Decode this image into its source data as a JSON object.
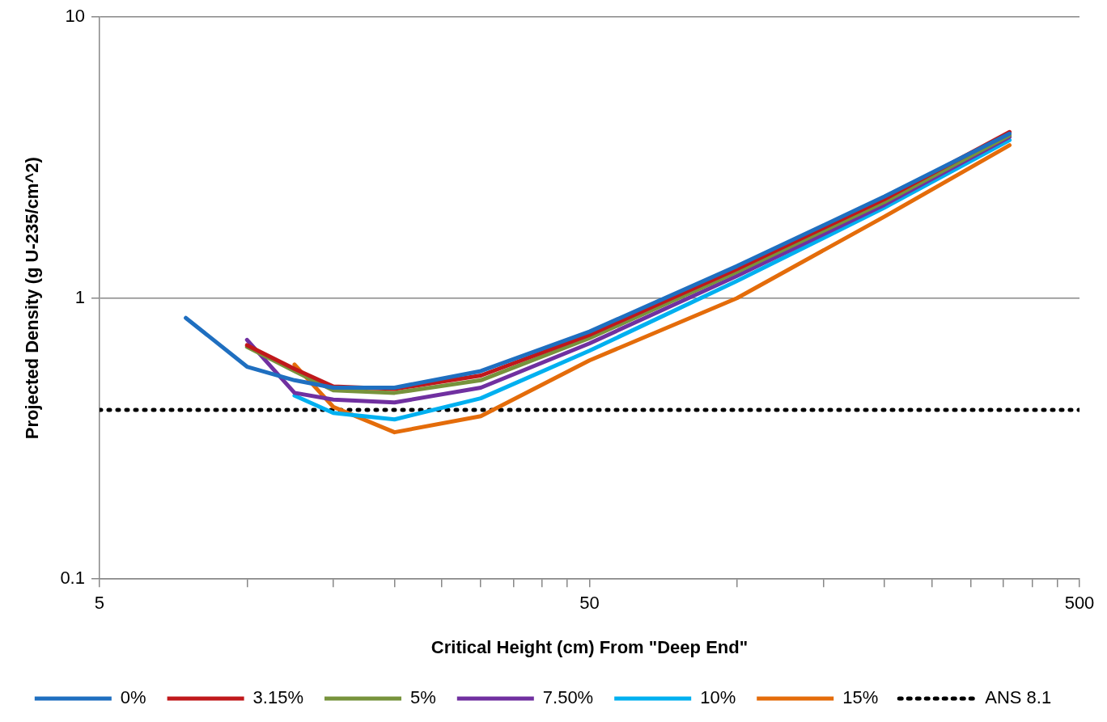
{
  "chart_data": {
    "type": "line",
    "xlabel": "Critical Height (cm) From \"Deep End\"",
    "ylabel": "Projected Density (g U-235/cm^2)",
    "log": "xy",
    "grid": "y",
    "legend": "bottom",
    "marker": "none",
    "line_style": "solid",
    "xlim": [
      5,
      500
    ],
    "ylim": [
      0.1,
      10
    ],
    "xticks": [
      5,
      {
        "value": 10,
        "label": null
      },
      {
        "value": 15,
        "label": null
      },
      {
        "value": 20,
        "label": null
      },
      {
        "value": 25,
        "label": null
      },
      {
        "value": 30,
        "label": null
      },
      {
        "value": 35,
        "label": null
      },
      {
        "value": 40,
        "label": null
      },
      {
        "value": 45,
        "label": null
      },
      50,
      {
        "value": 100,
        "label": null
      },
      {
        "value": 150,
        "label": null
      },
      {
        "value": 200,
        "label": null
      },
      {
        "value": 250,
        "label": null
      },
      {
        "value": 300,
        "label": null
      },
      {
        "value": 350,
        "label": null
      },
      {
        "value": 400,
        "label": null
      },
      {
        "value": 450,
        "label": null
      },
      500
    ],
    "yticks": [
      0.1,
      1,
      10
    ],
    "series": [
      {
        "name": "0%",
        "color": "#1f6fc0",
        "x": [
          7.5,
          10,
          12.5,
          15,
          20,
          30,
          50,
          100,
          200,
          360
        ],
        "values": [
          0.85,
          0.57,
          0.51,
          0.48,
          0.48,
          0.55,
          0.76,
          1.3,
          2.3,
          3.85
        ]
      },
      {
        "name": "3.15%",
        "color": "#c0181b",
        "x": [
          10,
          12.5,
          15,
          20,
          30,
          50,
          100,
          200,
          360
        ],
        "values": [
          0.68,
          0.56,
          0.485,
          0.475,
          0.53,
          0.74,
          1.27,
          2.25,
          3.9
        ]
      },
      {
        "name": "5%",
        "color": "#77933c",
        "x": [
          10,
          12.5,
          15,
          20,
          30,
          50,
          100,
          200,
          360
        ],
        "values": [
          0.67,
          0.55,
          0.47,
          0.46,
          0.51,
          0.72,
          1.24,
          2.2,
          3.8
        ]
      },
      {
        "name": "7.50%",
        "color": "#7030a0",
        "x": [
          10,
          12.5,
          15,
          20,
          30,
          50,
          100,
          200,
          360
        ],
        "values": [
          0.71,
          0.46,
          0.435,
          0.425,
          0.48,
          0.69,
          1.2,
          2.15,
          3.75
        ]
      },
      {
        "name": "10%",
        "color": "#00b0f0",
        "x": [
          12.5,
          15,
          20,
          30,
          50,
          100,
          200,
          360
        ],
        "values": [
          0.45,
          0.39,
          0.37,
          0.44,
          0.65,
          1.15,
          2.1,
          3.65
        ]
      },
      {
        "name": "15%",
        "color": "#e46c0a",
        "x": [
          12.5,
          15,
          20,
          30,
          50,
          100,
          200,
          360
        ],
        "values": [
          0.58,
          0.41,
          0.333,
          0.38,
          0.6,
          1.0,
          1.95,
          3.5
        ]
      }
    ],
    "ref_lines": [
      {
        "axis": "y",
        "value": 0.4,
        "label": "ANS 8.1",
        "color": "#000000",
        "line_style": "dotted"
      }
    ]
  }
}
